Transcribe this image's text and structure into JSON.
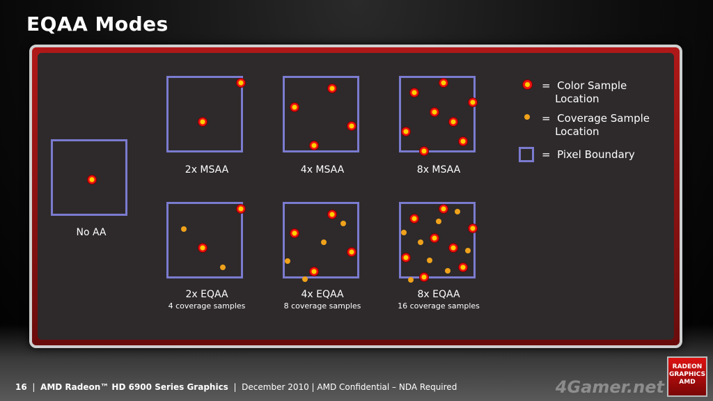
{
  "title": "EQAA Modes",
  "modes": [
    {
      "id": "no-aa",
      "label": "No AA",
      "sublabel": ""
    },
    {
      "id": "2x-msaa",
      "label": "2x MSAA",
      "sublabel": ""
    },
    {
      "id": "4x-msaa",
      "label": "4x MSAA",
      "sublabel": ""
    },
    {
      "id": "8x-msaa",
      "label": "8x MSAA",
      "sublabel": ""
    },
    {
      "id": "2x-eqaa",
      "label": "2x EQAA",
      "sublabel": "4 coverage samples"
    },
    {
      "id": "4x-eqaa",
      "label": "4x EQAA",
      "sublabel": "8 coverage samples"
    },
    {
      "id": "8x-eqaa",
      "label": "8x EQAA",
      "sublabel": "16 coverage samples"
    }
  ],
  "legend": {
    "color_sample": "=  Color Sample\n    Location",
    "coverage_sample": "=  Coverage Sample\n    Location",
    "pixel_boundary": "=  Pixel Boundary"
  },
  "colors": {
    "pixel_boundary": "#7b7bd0",
    "color_sample": "#e11111",
    "coverage_sample": "#f0a21b",
    "frame_accent": "#b01818"
  },
  "footer": {
    "page": "16",
    "product": "AMD Radeon™ HD 6900 Series Graphics",
    "rest": "December 2010 | AMD Confidential – NDA Required"
  },
  "logo_text": "RADEON GRAPHICS AMD",
  "watermark": "4Gamer.net"
}
